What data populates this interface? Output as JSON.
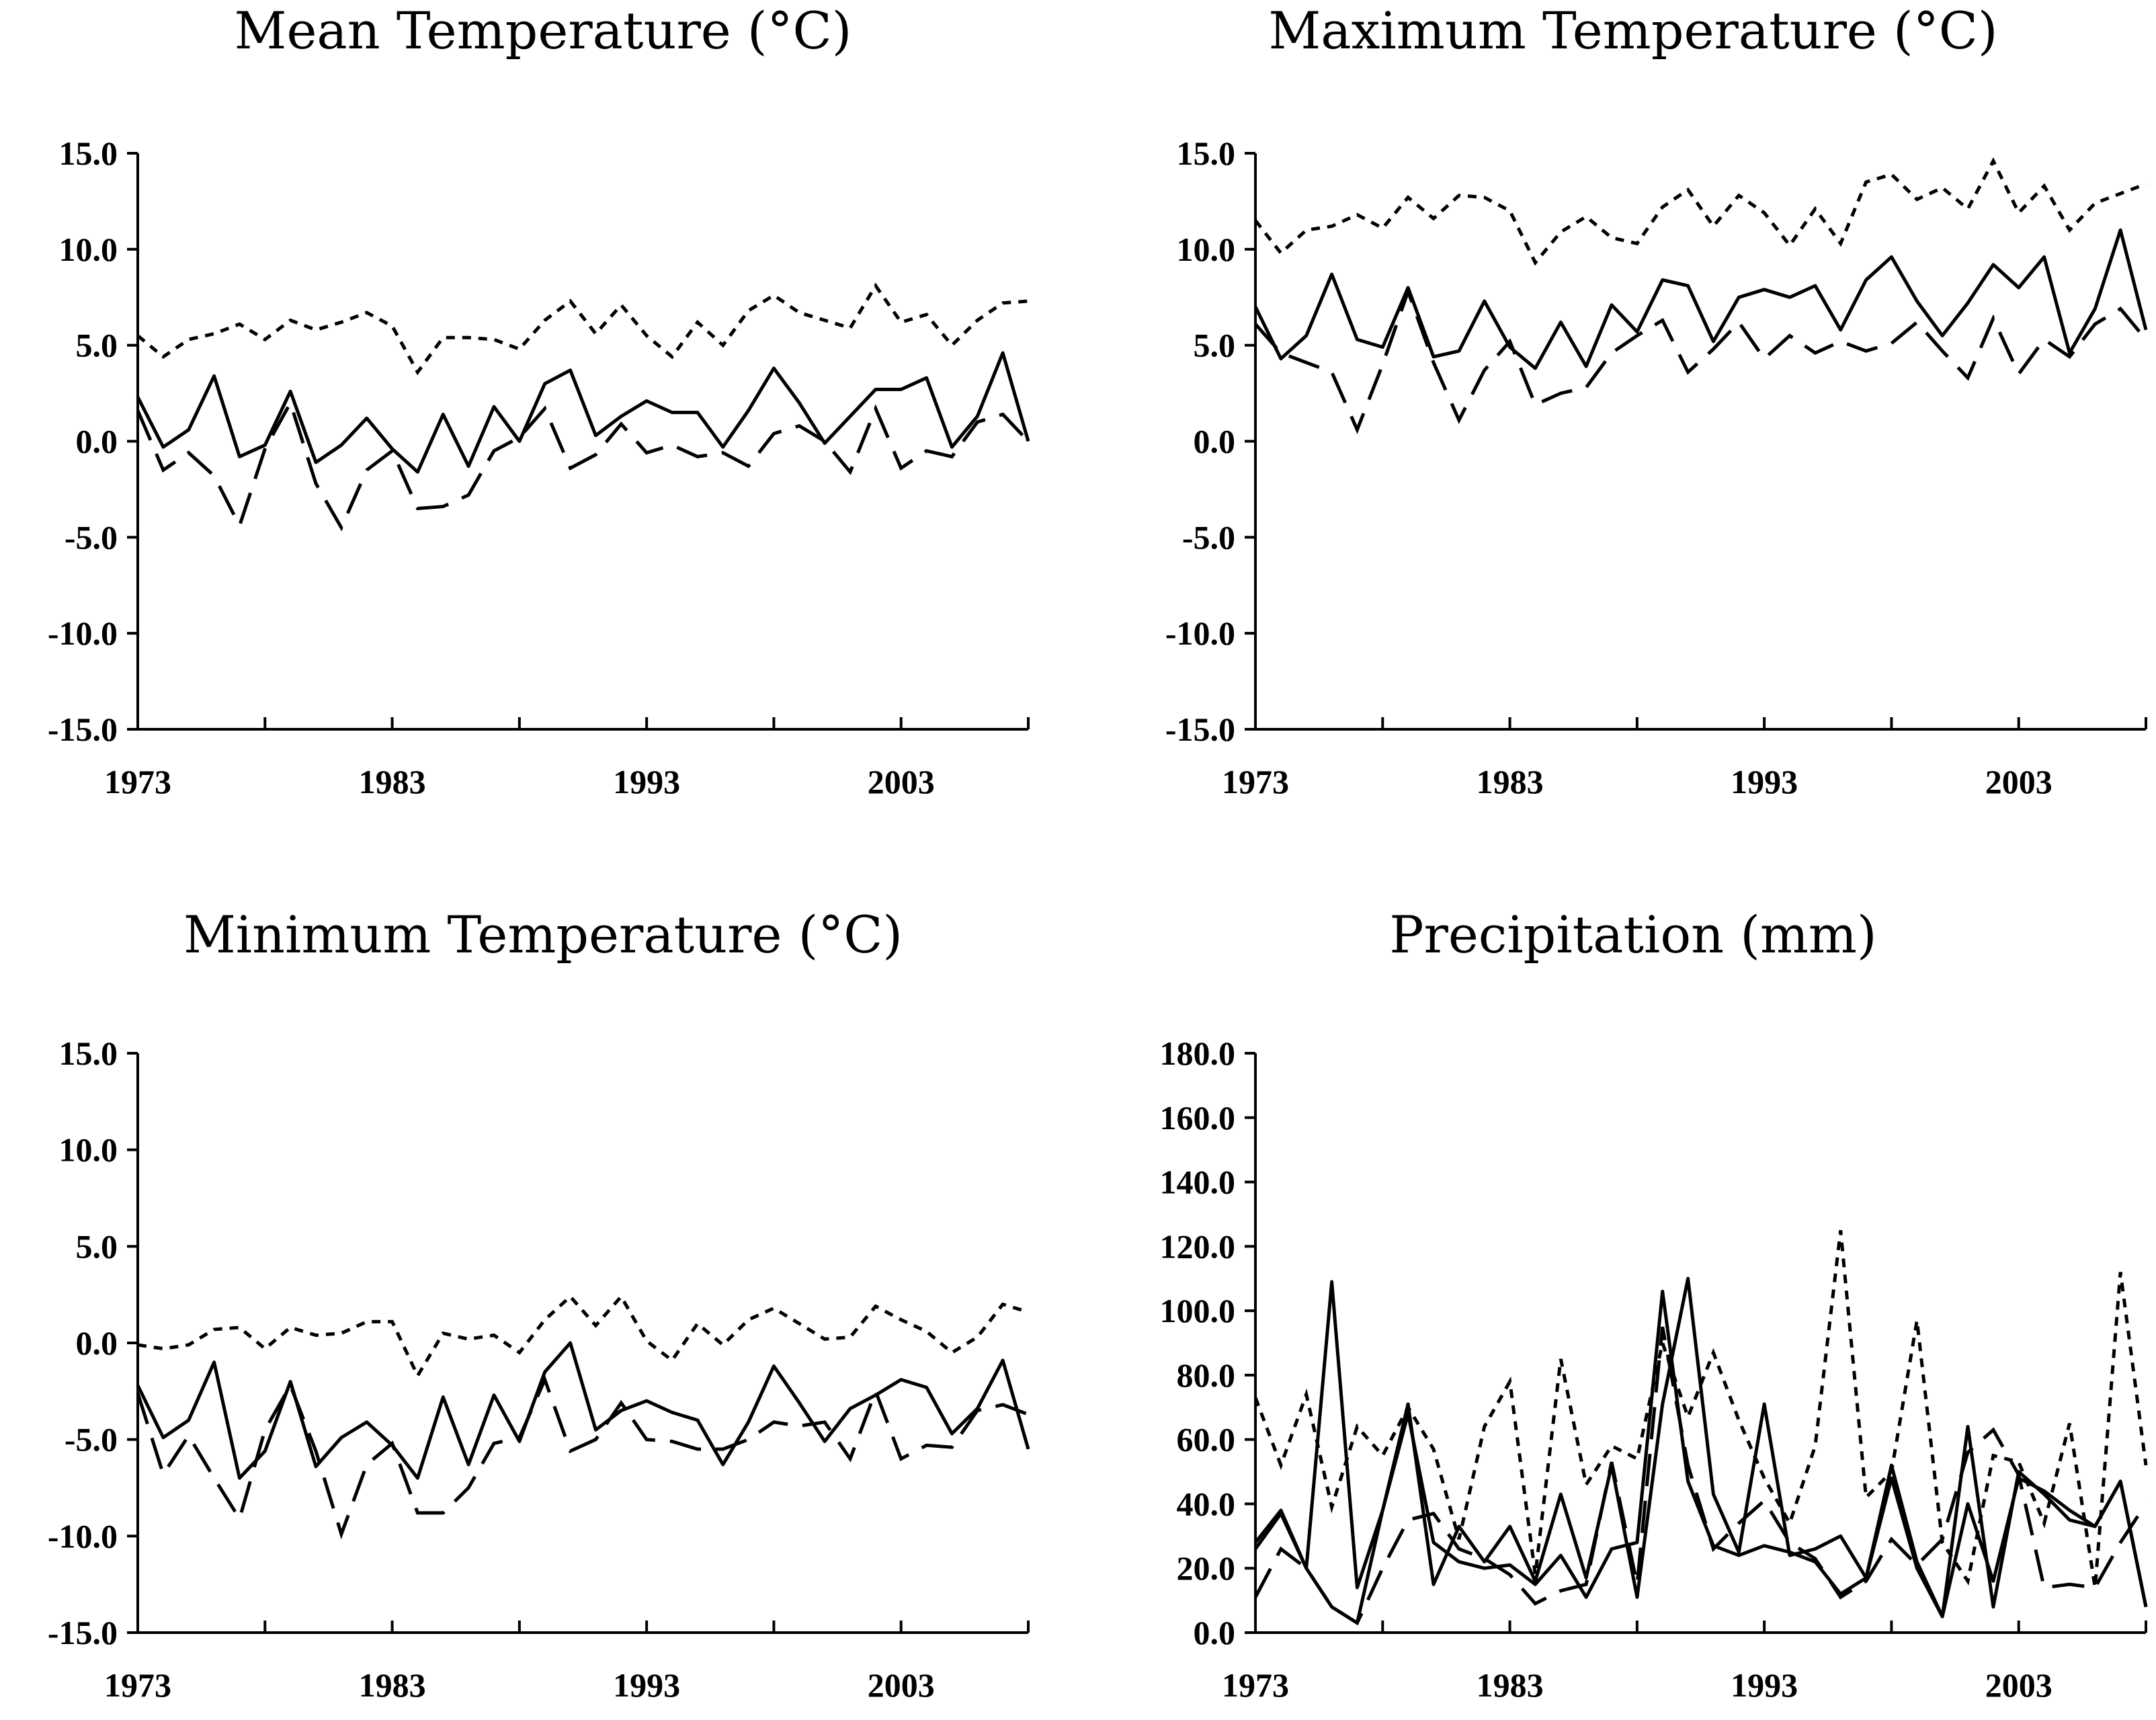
{
  "chart_data": [
    {
      "type": "line",
      "title": "Mean Temperature (°C)",
      "xlabel": "",
      "ylabel": "",
      "xlim": [
        1973,
        2008
      ],
      "ylim": [
        -15,
        15
      ],
      "x_ticks": [
        "1973",
        "1983",
        "1993",
        "2003"
      ],
      "y_ticks": [
        "15.0",
        "10.0",
        "5.0",
        "0.0",
        "-5.0",
        "-10.0",
        "-15.0"
      ],
      "x": [
        1973,
        1974,
        1975,
        1976,
        1977,
        1978,
        1979,
        1980,
        1981,
        1982,
        1983,
        1984,
        1985,
        1986,
        1987,
        1988,
        1989,
        1990,
        1991,
        1992,
        1993,
        1994,
        1995,
        1996,
        1997,
        1998,
        1999,
        2000,
        2001,
        2002,
        2003,
        2004,
        2005,
        2006,
        2007,
        2008
      ],
      "series": [
        {
          "style": "short-dash",
          "values": [
            5.5,
            4.4,
            5.3,
            5.6,
            6.1,
            5.3,
            6.3,
            5.8,
            6.2,
            6.7,
            6.0,
            3.6,
            5.4,
            5.4,
            5.3,
            4.8,
            6.3,
            7.3,
            5.6,
            7.1,
            5.5,
            4.4,
            6.2,
            5.0,
            6.8,
            7.6,
            6.7,
            6.3,
            5.9,
            8.1,
            6.2,
            6.6,
            5.0,
            6.3,
            7.2,
            7.3
          ]
        },
        {
          "style": "solid",
          "values": [
            2.3,
            -0.3,
            0.6,
            3.4,
            -0.8,
            -0.2,
            2.6,
            -1.1,
            -0.2,
            1.2,
            -0.4,
            -1.6,
            1.4,
            -1.3,
            1.8,
            0.0,
            3.0,
            3.7,
            0.3,
            1.3,
            2.1,
            1.5,
            1.5,
            -0.3,
            1.6,
            3.8,
            2.0,
            -0.1,
            1.3,
            2.7,
            2.7,
            3.3,
            -0.3,
            1.3,
            4.6,
            0.0
          ]
        },
        {
          "style": "long-dash",
          "values": [
            1.6,
            -1.5,
            -0.6,
            -1.8,
            -4.4,
            -0.4,
            2.0,
            -2.2,
            -4.5,
            -1.5,
            -0.5,
            -3.5,
            -3.4,
            -2.8,
            -0.5,
            0.2,
            1.7,
            -1.4,
            -0.7,
            0.9,
            -0.6,
            -0.2,
            -0.8,
            -0.6,
            -1.3,
            0.4,
            0.8,
            0.0,
            -1.6,
            1.7,
            -1.4,
            -0.5,
            -0.8,
            1.0,
            1.4,
            0.0
          ]
        }
      ]
    },
    {
      "type": "line",
      "title": "Maximum Temperature (°C)",
      "xlabel": "",
      "ylabel": "",
      "xlim": [
        1973,
        2008
      ],
      "ylim": [
        -15,
        15
      ],
      "x_ticks": [
        "1973",
        "1983",
        "1993",
        "2003"
      ],
      "y_ticks": [
        "15.0",
        "10.0",
        "5.0",
        "0.0",
        "-5.0",
        "-10.0",
        "-15.0"
      ],
      "x": [
        1973,
        1974,
        1975,
        1976,
        1977,
        1978,
        1979,
        1980,
        1981,
        1982,
        1983,
        1984,
        1985,
        1986,
        1987,
        1988,
        1989,
        1990,
        1991,
        1992,
        1993,
        1994,
        1995,
        1996,
        1997,
        1998,
        1999,
        2000,
        2001,
        2002,
        2003,
        2004,
        2005,
        2006,
        2007,
        2008
      ],
      "series": [
        {
          "style": "short-dash",
          "values": [
            11.5,
            9.8,
            11.0,
            11.2,
            11.8,
            11.1,
            12.7,
            11.6,
            12.8,
            12.7,
            12.0,
            9.3,
            10.9,
            11.7,
            10.6,
            10.3,
            12.2,
            13.1,
            11.2,
            12.8,
            11.9,
            10.2,
            12.1,
            10.3,
            13.5,
            13.9,
            12.6,
            13.2,
            12.1,
            14.6,
            11.9,
            13.3,
            11.0,
            12.4,
            12.9,
            13.4
          ]
        },
        {
          "style": "solid",
          "values": [
            7.0,
            4.3,
            5.5,
            8.7,
            5.3,
            4.9,
            8.0,
            4.4,
            4.7,
            7.3,
            4.9,
            3.8,
            6.2,
            3.9,
            7.1,
            5.7,
            8.4,
            8.1,
            5.2,
            7.5,
            7.9,
            7.5,
            8.1,
            5.8,
            8.4,
            9.6,
            7.3,
            5.5,
            7.2,
            9.2,
            8.0,
            9.6,
            4.6,
            6.9,
            11.0,
            5.8
          ]
        },
        {
          "style": "long-dash",
          "values": [
            6.1,
            4.6,
            4.1,
            3.6,
            0.6,
            4.0,
            7.8,
            4.1,
            1.1,
            3.7,
            5.2,
            1.9,
            2.5,
            2.8,
            4.6,
            5.5,
            6.3,
            3.6,
            4.8,
            6.2,
            4.3,
            5.5,
            4.6,
            5.2,
            4.7,
            5.1,
            6.2,
            4.7,
            3.3,
            6.4,
            3.5,
            5.3,
            4.4,
            6.1,
            6.9,
            5.3
          ]
        }
      ]
    },
    {
      "type": "line",
      "title": "Minimum Temperature (°C)",
      "xlabel": "",
      "ylabel": "",
      "xlim": [
        1973,
        2008
      ],
      "ylim": [
        -15,
        15
      ],
      "x_ticks": [
        "1973",
        "1983",
        "1993",
        "2003"
      ],
      "y_ticks": [
        "15.0",
        "10.0",
        "5.0",
        "0.0",
        "-5.0",
        "-10.0",
        "-15.0"
      ],
      "x": [
        1973,
        1974,
        1975,
        1976,
        1977,
        1978,
        1979,
        1980,
        1981,
        1982,
        1983,
        1984,
        1985,
        1986,
        1987,
        1988,
        1989,
        1990,
        1991,
        1992,
        1993,
        1994,
        1995,
        1996,
        1997,
        1998,
        1999,
        2000,
        2001,
        2002,
        2003,
        2004,
        2005,
        2006,
        2007,
        2008
      ],
      "series": [
        {
          "style": "short-dash",
          "values": [
            -0.1,
            -0.3,
            -0.1,
            0.7,
            0.8,
            -0.3,
            0.8,
            0.4,
            0.5,
            1.1,
            1.1,
            -1.7,
            0.5,
            0.2,
            0.4,
            -0.5,
            1.2,
            2.4,
            0.9,
            2.4,
            0.1,
            -0.9,
            1.0,
            -0.1,
            1.2,
            1.8,
            1.0,
            0.2,
            0.3,
            1.9,
            1.2,
            0.6,
            -0.5,
            0.3,
            2.0,
            1.6
          ]
        },
        {
          "style": "solid",
          "values": [
            -2.2,
            -4.9,
            -4.0,
            -1.0,
            -7.0,
            -5.6,
            -2.0,
            -6.4,
            -4.9,
            -4.1,
            -5.3,
            -7.0,
            -2.8,
            -6.3,
            -2.7,
            -5.1,
            -1.5,
            0.0,
            -4.5,
            -3.5,
            -3.0,
            -3.6,
            -4.0,
            -6.3,
            -4.1,
            -1.2,
            -3.1,
            -5.1,
            -3.4,
            -2.7,
            -1.9,
            -2.3,
            -4.7,
            -3.4,
            -0.9,
            -5.5
          ]
        },
        {
          "style": "long-dash",
          "values": [
            -2.6,
            -6.8,
            -4.8,
            -7.0,
            -9.1,
            -4.5,
            -2.2,
            -5.6,
            -9.9,
            -6.3,
            -5.2,
            -8.8,
            -8.8,
            -7.5,
            -5.2,
            -4.9,
            -1.9,
            -5.6,
            -5.0,
            -3.1,
            -5.0,
            -5.1,
            -5.5,
            -5.5,
            -5.0,
            -4.1,
            -4.3,
            -4.1,
            -6.0,
            -2.5,
            -6.0,
            -5.3,
            -5.4,
            -3.5,
            -3.2,
            -3.7
          ]
        }
      ]
    },
    {
      "type": "line",
      "title": "Precipitation (mm)",
      "xlabel": "",
      "ylabel": "",
      "xlim": [
        1973,
        2008
      ],
      "ylim": [
        0,
        180
      ],
      "x_ticks": [
        "1973",
        "1983",
        "1993",
        "2003"
      ],
      "y_ticks": [
        "180.0",
        "160.0",
        "140.0",
        "120.0",
        "100.0",
        "80.0",
        "60.0",
        "40.0",
        "20.0",
        "0.0"
      ],
      "x": [
        1973,
        1974,
        1975,
        1976,
        1977,
        1978,
        1979,
        1980,
        1981,
        1982,
        1983,
        1984,
        1985,
        1986,
        1987,
        1988,
        1989,
        1990,
        1991,
        1992,
        1993,
        1994,
        1995,
        1996,
        1997,
        1998,
        1999,
        2000,
        2001,
        2002,
        2003,
        2004,
        2005,
        2006,
        2007,
        2008
      ],
      "series": [
        {
          "style": "short-dash",
          "values": [
            73,
            52,
            74,
            39,
            64,
            55,
            70,
            57,
            29,
            64,
            78,
            18,
            85,
            46,
            58,
            54,
            90,
            67,
            87,
            66,
            48,
            34,
            58,
            125,
            42,
            50,
            97,
            28,
            16,
            55,
            53,
            34,
            65,
            14,
            112,
            52
          ]
        },
        {
          "style": "solid",
          "values": [
            26,
            37,
            20,
            109,
            14,
            38,
            71,
            15,
            33,
            22,
            33,
            16,
            43,
            17,
            52,
            11,
            71,
            110,
            43,
            25,
            71,
            24,
            26,
            30,
            17,
            52,
            22,
            5,
            64,
            8,
            50,
            43,
            35,
            33,
            47,
            8
          ]
        },
        {
          "style": "solid-2",
          "values": [
            28,
            38,
            20,
            8,
            3,
            38,
            68,
            28,
            22,
            20,
            21,
            15,
            24,
            11,
            26,
            28,
            106,
            47,
            27,
            24,
            27,
            25,
            22,
            12,
            17,
            48,
            20,
            5,
            40,
            16,
            48,
            44,
            38,
            33,
            47,
            8
          ]
        },
        {
          "style": "long-dash",
          "values": [
            11,
            26,
            20,
            8,
            3,
            20,
            35,
            37,
            26,
            23,
            18,
            9,
            13,
            15,
            53,
            15,
            95,
            52,
            26,
            34,
            41,
            28,
            23,
            11,
            16,
            29,
            21,
            29,
            56,
            63,
            49,
            14,
            15,
            14,
            28,
            40
          ]
        }
      ]
    }
  ]
}
